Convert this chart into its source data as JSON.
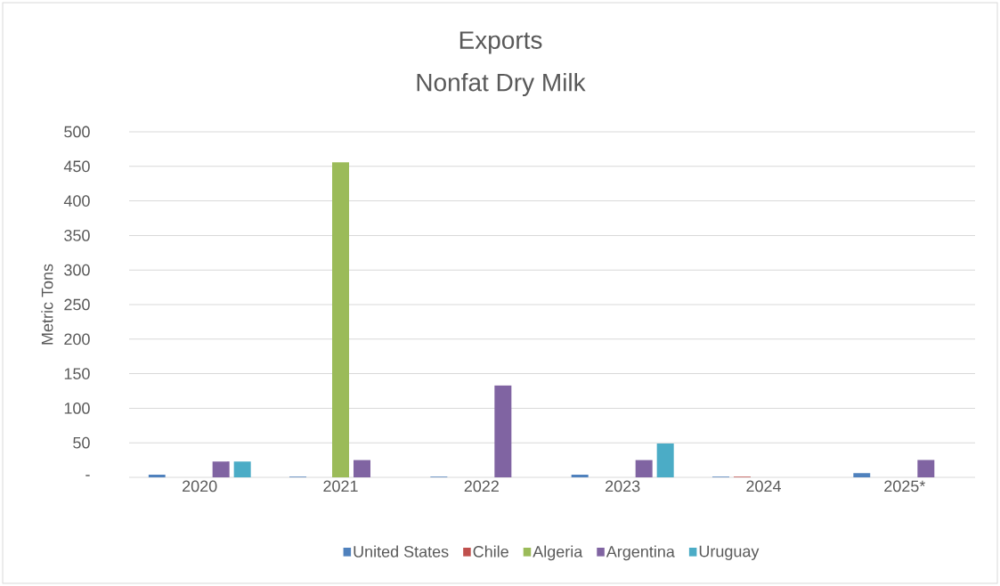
{
  "chart_data": {
    "type": "bar",
    "title": "Exports",
    "subtitle": "Nonfat Dry Milk",
    "ylabel": "Metric Tons",
    "categories": [
      "2020",
      "2021",
      "2022",
      "2023",
      "2024",
      "2025*"
    ],
    "series": [
      {
        "name": "United States",
        "color": "#4f81bd",
        "values": [
          4,
          1,
          1,
          4,
          1,
          6
        ]
      },
      {
        "name": "Chile",
        "color": "#c0504d",
        "values": [
          0,
          0,
          0,
          0,
          1,
          0
        ]
      },
      {
        "name": "Algeria",
        "color": "#9bbb59",
        "values": [
          0,
          456,
          0,
          0,
          0,
          0
        ]
      },
      {
        "name": "Argentina",
        "color": "#8064a2",
        "values": [
          23,
          25,
          133,
          25,
          0,
          25
        ]
      },
      {
        "name": "Uruguay",
        "color": "#4bacc6",
        "values": [
          23,
          0,
          0,
          49,
          0,
          0
        ]
      }
    ],
    "ylim": [
      0,
      500
    ],
    "yticks": [
      {
        "value": 0,
        "label": "-"
      },
      50,
      100,
      150,
      200,
      250,
      300,
      350,
      400,
      450,
      500
    ],
    "grid": "y",
    "legend": "bottom"
  }
}
